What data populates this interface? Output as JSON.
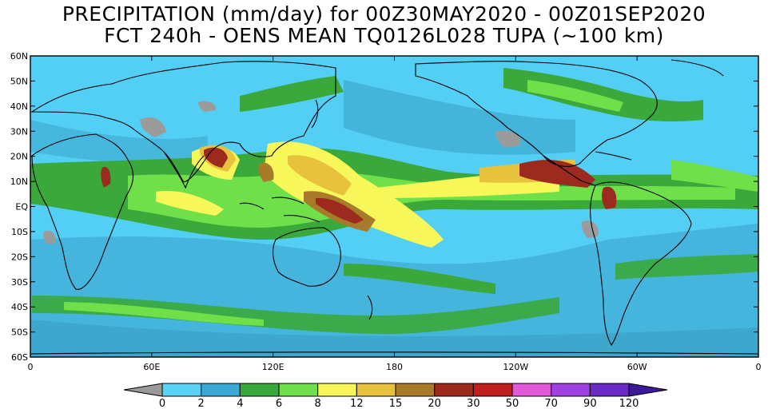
{
  "title": {
    "line1": "PRECIPITATION (mm/day) for 00Z30MAY2020 - 00Z01SEP2020",
    "line2": "FCT 240h - OENS MEAN TQ0126L028 TUPA (~100 km)"
  },
  "axes": {
    "lat_ticks": [
      "60N",
      "50N",
      "40N",
      "30N",
      "20N",
      "10N",
      "EQ",
      "10S",
      "20S",
      "30S",
      "40S",
      "50S",
      "60S"
    ],
    "lon_ticks": [
      "0",
      "60E",
      "120E",
      "180",
      "120W",
      "60W",
      "0"
    ]
  },
  "colorbar": {
    "labels": [
      "0",
      "2",
      "4",
      "6",
      "8",
      "12",
      "15",
      "20",
      "30",
      "50",
      "70",
      "90",
      "120"
    ],
    "colors": [
      "#9a9a9a",
      "#5ad2f6",
      "#3aa8d4",
      "#3aa83a",
      "#6fe04a",
      "#f7f75a",
      "#e8c23c",
      "#a87b2a",
      "#9c2a1e",
      "#c21e1e",
      "#e05ad8",
      "#a040e0",
      "#6a2ac8",
      "#3a1a98"
    ]
  },
  "map_colors": {
    "ocean_base": "#53cff5",
    "dry_band": "#3aa1c8",
    "land_outline": "#000000",
    "grey_dry": "#9b9b9b"
  }
}
